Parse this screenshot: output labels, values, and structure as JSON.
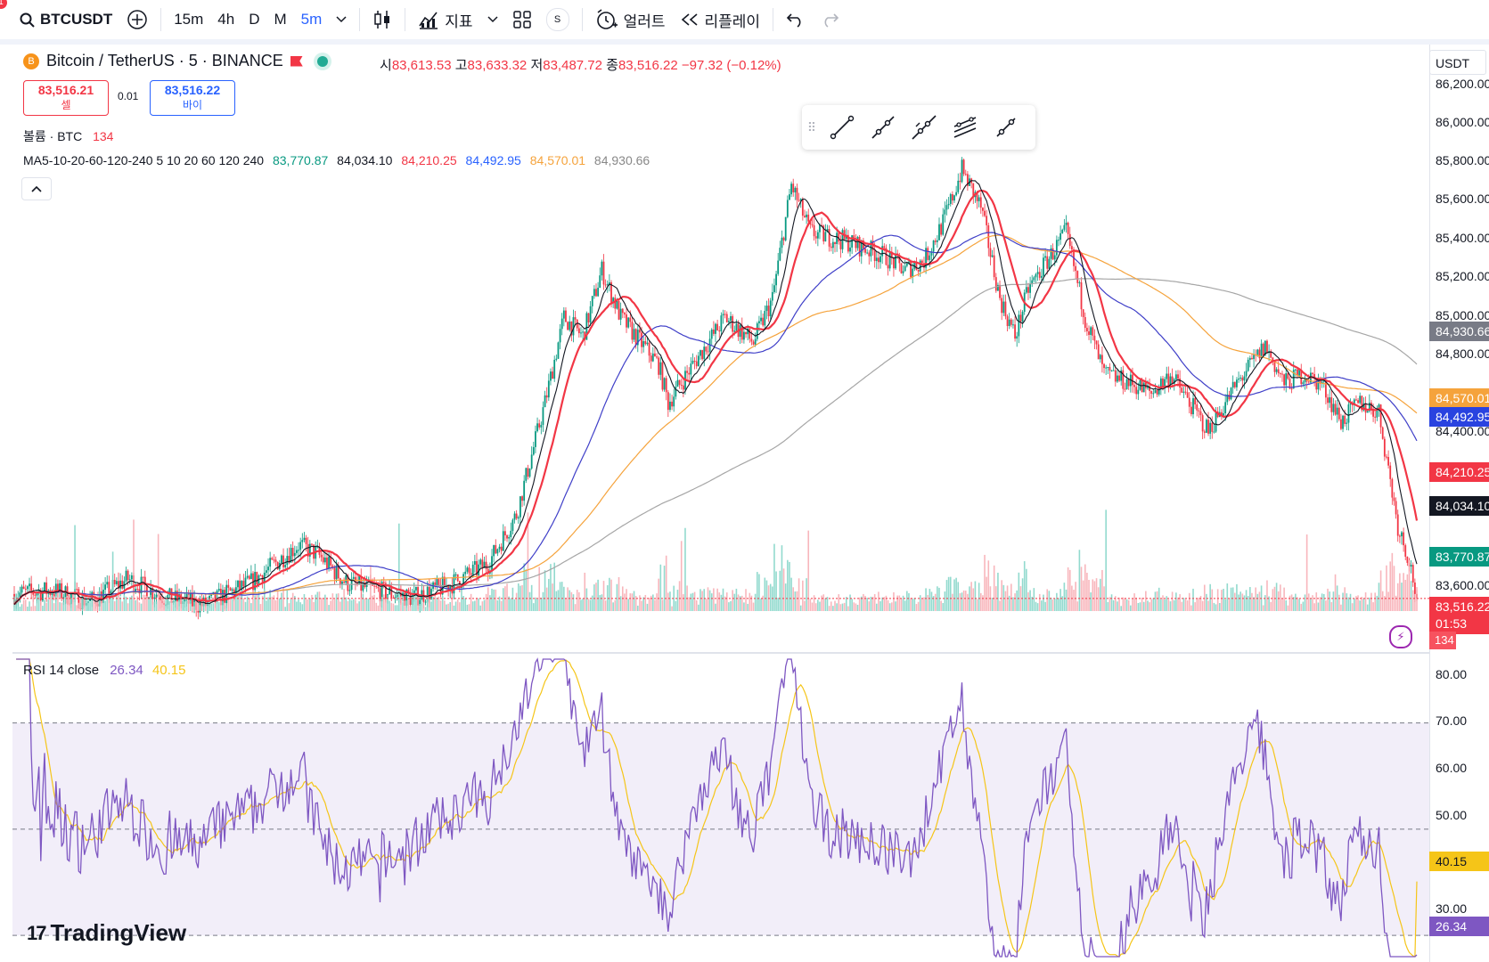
{
  "toolbar": {
    "notification_count": "1",
    "symbol": "BTCUSDT",
    "intervals": [
      "15m",
      "4h",
      "D",
      "M",
      "5m"
    ],
    "active_interval": "5m",
    "indicators_label": "지표",
    "s_label": "S",
    "alert_label": "얼러트",
    "replay_label": "리플레이"
  },
  "legend": {
    "symbol_title": "Bitcoin / TetherUS · 5 · BINANCE",
    "coin_glyph": "B",
    "open_label": "시",
    "open": "83,613.53",
    "high_label": "고",
    "high": "83,633.32",
    "low_label": "저",
    "low": "83,487.72",
    "close_label": "종",
    "close": "83,516.22",
    "change": "−97.32 (−0.12%)"
  },
  "trade": {
    "sell_price": "83,516.21",
    "sell_label": "셀",
    "spread": "0.01",
    "buy_price": "83,516.22",
    "buy_label": "바이"
  },
  "volume_legend": {
    "label": "볼륨 · BTC",
    "value": "134"
  },
  "ma_legend": {
    "label": "MA5-10-20-60-120-240 5 10 20 60 120 240",
    "values": [
      "83,770.87",
      "84,034.10",
      "84,210.25",
      "84,492.95",
      "84,570.01",
      "84,930.66"
    ]
  },
  "rsi_legend": {
    "label": "RSI 14 close",
    "rsi": "26.34",
    "ma": "40.15"
  },
  "price_scale": {
    "unit": "USDT",
    "ticks": [
      "86,200.00",
      "86,000.00",
      "85,800.00",
      "85,600.00",
      "85,400.00",
      "85,200.00",
      "85,000.00",
      "84,800.00",
      "84,400.00",
      "83,600.00"
    ],
    "labels": {
      "ma240": "84,930.66",
      "ma120": "84,570.01",
      "ma60": "84,492.95",
      "ma20": "84,210.25",
      "ma10": "84,034.10",
      "ma5": "83,770.87",
      "last": "83,516.22",
      "countdown": "01:53",
      "volume": "134"
    },
    "rsi_ticks": [
      "80.00",
      "70.00",
      "60.00",
      "50.00",
      "30.00"
    ],
    "rsi_labels": {
      "ma": "40.15",
      "rsi": "26.34"
    }
  },
  "logo": {
    "text": "TradingView",
    "mark": "17"
  },
  "colors": {
    "up": "#089981",
    "down": "#f23645",
    "ma5": "#131722",
    "ma10": "#131722",
    "ma20": "#f23645",
    "ma60": "#3f3fc8",
    "ma120": "#f5a33c",
    "ma240": "#a6a6a6",
    "rsi": "#7e57c2",
    "rsi_ma": "#f5c518"
  },
  "chart_data": {
    "type": "candlestick",
    "symbol": "BTCUSDT",
    "interval": "5m",
    "ylim": [
      83450,
      86300
    ],
    "keypoints": [
      [
        0,
        83540
      ],
      [
        20,
        83560
      ],
      [
        40,
        83500
      ],
      [
        60,
        83620
      ],
      [
        80,
        83520
      ],
      [
        100,
        83480
      ],
      [
        125,
        83600
      ],
      [
        150,
        83800
      ],
      [
        160,
        83750
      ],
      [
        175,
        83600
      ],
      [
        190,
        83560
      ],
      [
        210,
        83520
      ],
      [
        230,
        83590
      ],
      [
        250,
        83700
      ],
      [
        265,
        83960
      ],
      [
        280,
        84550
      ],
      [
        290,
        85000
      ],
      [
        300,
        84900
      ],
      [
        310,
        85250
      ],
      [
        320,
        85000
      ],
      [
        340,
        84750
      ],
      [
        345,
        84550
      ],
      [
        360,
        84780
      ],
      [
        375,
        85000
      ],
      [
        390,
        84870
      ],
      [
        400,
        85100
      ],
      [
        410,
        85700
      ],
      [
        420,
        85450
      ],
      [
        440,
        85400
      ],
      [
        460,
        85320
      ],
      [
        470,
        85250
      ],
      [
        480,
        85300
      ],
      [
        490,
        85500
      ],
      [
        500,
        85780
      ],
      [
        510,
        85580
      ],
      [
        520,
        85100
      ],
      [
        528,
        84900
      ],
      [
        535,
        85150
      ],
      [
        545,
        85300
      ],
      [
        555,
        85450
      ],
      [
        565,
        85000
      ],
      [
        575,
        84700
      ],
      [
        590,
        84650
      ],
      [
        600,
        84600
      ],
      [
        610,
        84700
      ],
      [
        620,
        84550
      ],
      [
        630,
        84400
      ],
      [
        645,
        84650
      ],
      [
        660,
        84850
      ],
      [
        670,
        84650
      ],
      [
        680,
        84700
      ],
      [
        690,
        84650
      ],
      [
        700,
        84450
      ],
      [
        710,
        84550
      ],
      [
        720,
        84500
      ],
      [
        730,
        83900
      ],
      [
        736,
        83720
      ],
      [
        740,
        83516
      ]
    ],
    "moving_averages": {
      "ma5": 83770.87,
      "ma10": 84034.1,
      "ma20": 84210.25,
      "ma60": 84492.95,
      "ma120": 84570.01,
      "ma240": 84930.66
    },
    "last_price": 83516.22,
    "last_volume": 134,
    "rsi": {
      "period": 14,
      "value": 26.34,
      "ma": 40.15,
      "ylim": [
        25,
        82
      ],
      "bands": [
        30,
        50,
        70
      ]
    }
  }
}
